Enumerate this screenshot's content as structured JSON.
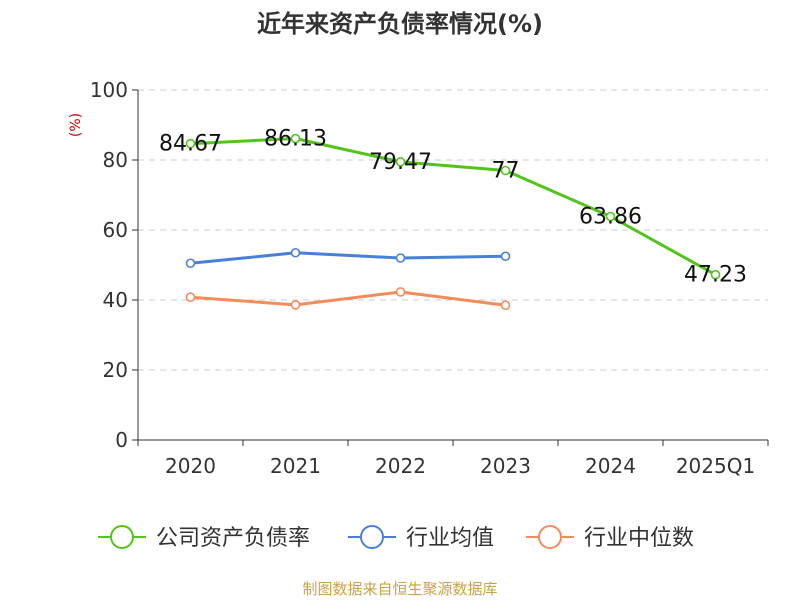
{
  "chart_data": {
    "type": "line",
    "title": "近年来资产负债率情况(%)",
    "ylabel": "(%)",
    "categories": [
      "2020",
      "2021",
      "2022",
      "2023",
      "2024",
      "2025Q1"
    ],
    "ylim": [
      0,
      100
    ],
    "yticks": [
      0,
      20,
      40,
      60,
      80,
      100
    ],
    "grid": true,
    "legend_position": "bottom",
    "series": [
      {
        "name": "公司资产负债率",
        "color": "#52c41a",
        "values": [
          84.67,
          86.13,
          79.47,
          77,
          63.86,
          47.23
        ],
        "labels": [
          "84.67",
          "86.13",
          "79.47",
          "77",
          "63.86",
          "47.23"
        ]
      },
      {
        "name": "行业均值",
        "color": "#4a7fd8",
        "values": [
          50.5,
          53.5,
          52,
          52.5,
          null,
          null
        ]
      },
      {
        "name": "行业中位数",
        "color": "#f28c5a",
        "values": [
          40.8,
          38.6,
          42.3,
          38.5,
          null,
          null
        ]
      }
    ]
  },
  "source": "制图数据来自恒生聚源数据库"
}
